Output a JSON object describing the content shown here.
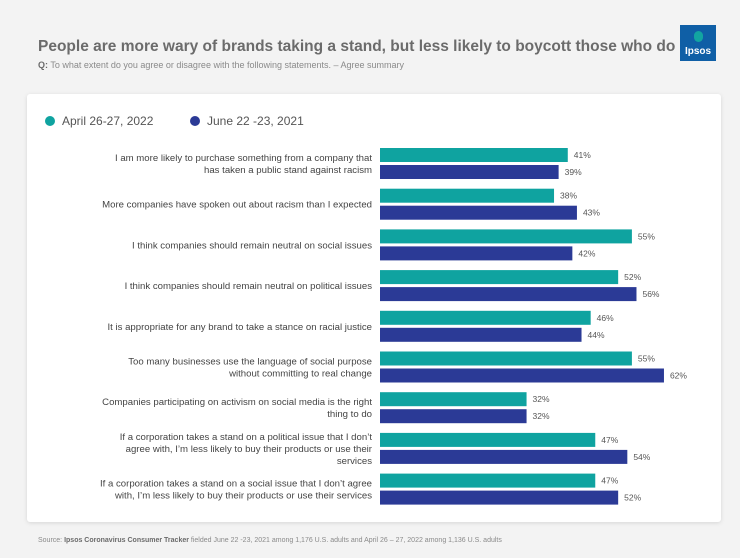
{
  "header": {
    "title": "People are more wary of brands taking a stand, but less likely to boycott those who do",
    "question_prefix": "Q:",
    "question": "To what extent do you agree or disagree with the following statements. – Agree summary",
    "logo_text": "Ipsos"
  },
  "colors": {
    "series_2022": "#0fa3a0",
    "series_2021": "#2b3a96"
  },
  "footer": {
    "source_prefix": "Source: ",
    "source_bold": "Ipsos Coronavirus Consumer Tracker",
    "source_rest": " fielded June 22 -23, 2021 among 1,176 U.S. adults and April 26 – 27, 2022 among 1,136 U.S. adults"
  },
  "chart_data": {
    "type": "bar",
    "orientation": "horizontal",
    "legend_position": "top-left",
    "categories": [
      [
        "I am more likely to purchase something from a company that",
        "has taken a public stand against racism"
      ],
      [
        "More companies have spoken out about racism than I expected"
      ],
      [
        "I think companies should remain neutral on social issues"
      ],
      [
        "I think companies should remain neutral on political issues"
      ],
      [
        "It is appropriate for any brand to take a stance on racial justice"
      ],
      [
        "Too many businesses use the language of social purpose",
        "without committing to real change"
      ],
      [
        "Companies participating on activism on social media is the right",
        "thing to do"
      ],
      [
        "If a corporation takes a stand on a political issue that I don’t",
        "agree with, I’m less likely to buy their products or use their",
        "services"
      ],
      [
        "If a corporation takes a stand on a social issue that I don’t agree",
        "with, I’m less likely to buy their products or use their services"
      ]
    ],
    "series": [
      {
        "name": "April 26-27, 2022",
        "values": [
          41,
          38,
          55,
          52,
          46,
          55,
          32,
          47,
          47
        ],
        "labels": [
          "41%",
          "38%",
          "55%",
          "52%",
          "46%",
          "55%",
          "32%",
          "47%",
          "47%"
        ]
      },
      {
        "name": "June 22 -23, 2021",
        "values": [
          39,
          43,
          42,
          56,
          44,
          62,
          32,
          54,
          52
        ],
        "labels": [
          "39%",
          "43%",
          "42%",
          "56%",
          "44%",
          "62%",
          "32%",
          "54%",
          "52%"
        ]
      }
    ],
    "unit": "%"
  }
}
